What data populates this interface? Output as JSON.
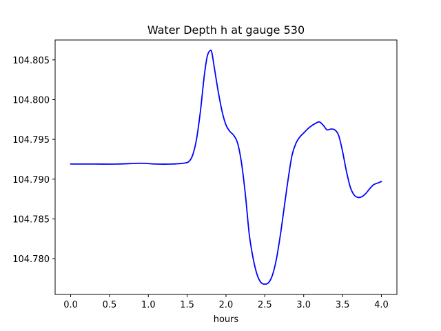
{
  "chart_data": {
    "type": "line",
    "title": "Water Depth h at gauge 530",
    "xlabel": "hours",
    "ylabel": "",
    "xlim": [
      -0.2,
      4.2
    ],
    "ylim": [
      104.7755,
      104.8075
    ],
    "xticks": [
      0.0,
      0.5,
      1.0,
      1.5,
      2.0,
      2.5,
      3.0,
      3.5,
      4.0
    ],
    "xtick_labels": [
      "0.0",
      "0.5",
      "1.0",
      "1.5",
      "2.0",
      "2.5",
      "3.0",
      "3.5",
      "4.0"
    ],
    "yticks": [
      104.78,
      104.785,
      104.79,
      104.795,
      104.8,
      104.805
    ],
    "ytick_labels": [
      "104.780",
      "104.785",
      "104.790",
      "104.795",
      "104.800",
      "104.805"
    ],
    "grid": false,
    "series": [
      {
        "color": "#0000ff",
        "x": [
          0.0,
          0.3,
          0.6,
          0.9,
          1.1,
          1.3,
          1.45,
          1.52,
          1.57,
          1.62,
          1.67,
          1.72,
          1.76,
          1.8,
          1.82,
          1.85,
          1.9,
          1.95,
          2.0,
          2.05,
          2.1,
          2.15,
          2.2,
          2.25,
          2.3,
          2.35,
          2.4,
          2.45,
          2.5,
          2.55,
          2.6,
          2.65,
          2.7,
          2.75,
          2.8,
          2.85,
          2.9,
          2.95,
          3.0,
          3.05,
          3.1,
          3.15,
          3.2,
          3.25,
          3.3,
          3.35,
          3.4,
          3.45,
          3.5,
          3.55,
          3.6,
          3.65,
          3.7,
          3.75,
          3.8,
          3.85,
          3.9,
          3.95,
          4.0
        ],
        "y": [
          104.7919,
          104.7919,
          104.7919,
          104.792,
          104.7919,
          104.7919,
          104.792,
          104.7922,
          104.793,
          104.795,
          104.7985,
          104.803,
          104.8055,
          104.8062,
          104.8058,
          104.804,
          104.801,
          104.7985,
          104.7968,
          104.796,
          104.7955,
          104.7945,
          104.792,
          104.788,
          104.783,
          104.78,
          104.778,
          104.777,
          104.7768,
          104.777,
          104.778,
          104.78,
          104.783,
          104.7865,
          104.79,
          104.793,
          104.7945,
          104.7953,
          104.7958,
          104.7963,
          104.7967,
          104.797,
          104.7972,
          104.7968,
          104.7962,
          104.7963,
          104.7962,
          104.7955,
          104.7935,
          104.791,
          104.789,
          104.788,
          104.7877,
          104.7878,
          104.7882,
          104.7888,
          104.7893,
          104.7895,
          104.7897
        ]
      }
    ]
  }
}
